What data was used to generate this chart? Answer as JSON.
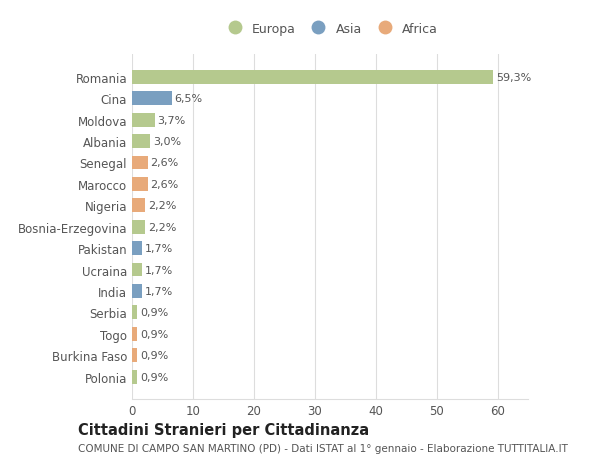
{
  "categories": [
    "Romania",
    "Cina",
    "Moldova",
    "Albania",
    "Senegal",
    "Marocco",
    "Nigeria",
    "Bosnia-Erzegovina",
    "Pakistan",
    "Ucraina",
    "India",
    "Serbia",
    "Togo",
    "Burkina Faso",
    "Polonia"
  ],
  "values": [
    59.3,
    6.5,
    3.7,
    3.0,
    2.6,
    2.6,
    2.2,
    2.2,
    1.7,
    1.7,
    1.7,
    0.9,
    0.9,
    0.9,
    0.9
  ],
  "labels": [
    "59,3%",
    "6,5%",
    "3,7%",
    "3,0%",
    "2,6%",
    "2,6%",
    "2,2%",
    "2,2%",
    "1,7%",
    "1,7%",
    "1,7%",
    "0,9%",
    "0,9%",
    "0,9%",
    "0,9%"
  ],
  "continents": [
    "Europa",
    "Asia",
    "Europa",
    "Europa",
    "Africa",
    "Africa",
    "Africa",
    "Europa",
    "Asia",
    "Europa",
    "Asia",
    "Europa",
    "Africa",
    "Africa",
    "Europa"
  ],
  "colors": {
    "Europa": "#b5c98e",
    "Asia": "#7a9fc0",
    "Africa": "#e8aa7a"
  },
  "legend_order": [
    "Europa",
    "Asia",
    "Africa"
  ],
  "xlim": [
    0,
    65
  ],
  "xticks": [
    0,
    10,
    20,
    30,
    40,
    50,
    60
  ],
  "title": "Cittadini Stranieri per Cittadinanza",
  "subtitle": "COMUNE DI CAMPO SAN MARTINO (PD) - Dati ISTAT al 1° gennaio - Elaborazione TUTTITALIA.IT",
  "background_color": "#ffffff",
  "bar_height": 0.65,
  "grid_color": "#dddddd",
  "text_color": "#555555",
  "title_fontsize": 10.5,
  "subtitle_fontsize": 7.5,
  "tick_fontsize": 8.5,
  "label_fontsize": 8.0,
  "legend_fontsize": 9.0
}
